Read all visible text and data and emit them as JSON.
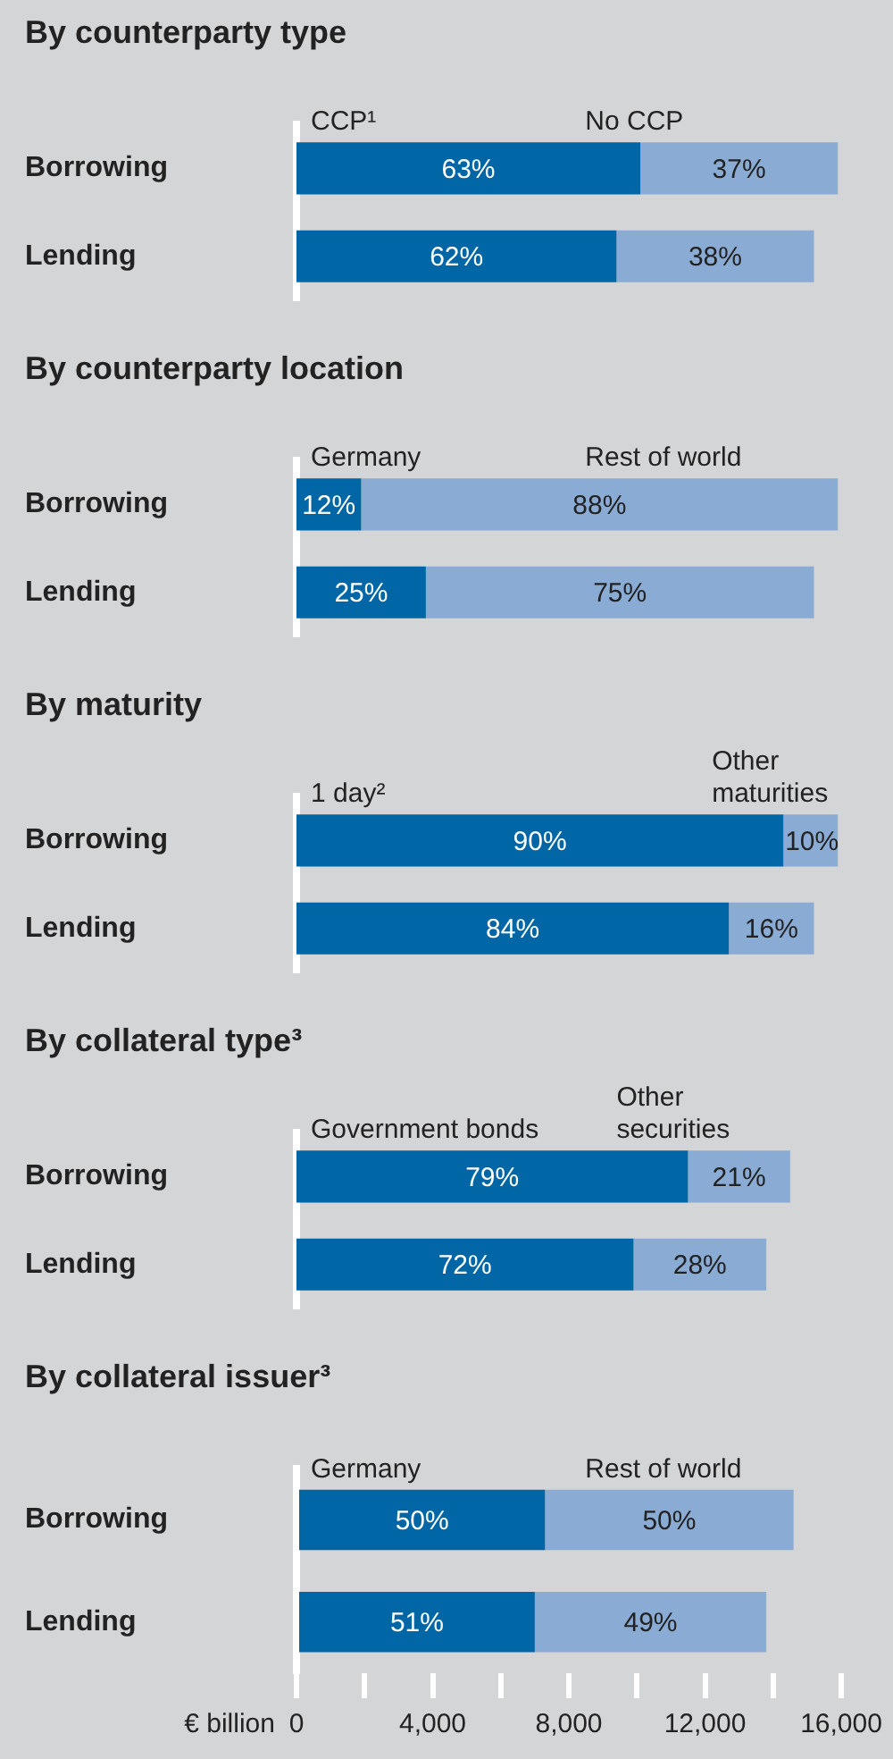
{
  "chart_data": [
    {
      "type": "bar",
      "orientation": "horizontal",
      "stacked": true,
      "title": "By counterparty type",
      "categories": [
        "Borrowing",
        "Lending"
      ],
      "tick_labels": "y",
      "xlim": [
        0,
        16000
      ],
      "series": [
        {
          "name": "CCP¹",
          "color": "#0066a6",
          "values": [
            10100,
            9400
          ]
        },
        {
          "name": "No CCP",
          "color": "#8aabd3",
          "values": [
            5800,
            5800
          ]
        }
      ],
      "annotations": [
        "63%",
        "37%",
        "62%",
        "38%"
      ]
    },
    {
      "type": "bar",
      "orientation": "horizontal",
      "stacked": true,
      "title": "By counterparty location",
      "categories": [
        "Borrowing",
        "Lending"
      ],
      "tick_labels": "y",
      "xlim": [
        0,
        16000
      ],
      "series": [
        {
          "name": "Germany",
          "color": "#0066a6",
          "values": [
            1900,
            3800
          ]
        },
        {
          "name": "Rest of world",
          "color": "#8aabd3",
          "values": [
            14000,
            11400
          ]
        }
      ],
      "annotations": [
        "12%",
        "88%",
        "25%",
        "75%"
      ]
    },
    {
      "type": "bar",
      "orientation": "horizontal",
      "stacked": true,
      "title": "By maturity",
      "categories": [
        "Borrowing",
        "Lending"
      ],
      "tick_labels": "y",
      "xlim": [
        0,
        16000
      ],
      "series": [
        {
          "name": "1 day²",
          "color": "#0066a6",
          "values": [
            14300,
            12700
          ]
        },
        {
          "name": "Other maturities",
          "color": "#8aabd3",
          "values": [
            1600,
            2500
          ]
        }
      ],
      "annotations": [
        "90%",
        "10%",
        "84%",
        "16%"
      ]
    },
    {
      "type": "bar",
      "orientation": "horizontal",
      "stacked": true,
      "title": "By collateral type³",
      "categories": [
        "Borrowing",
        "Lending"
      ],
      "tick_labels": "y",
      "xlim": [
        0,
        16000
      ],
      "series": [
        {
          "name": "Government bonds",
          "color": "#0066a6",
          "values": [
            11500,
            9900
          ]
        },
        {
          "name": "Other securities",
          "color": "#8aabd3",
          "values": [
            3000,
            3900
          ]
        }
      ],
      "annotations": [
        "79%",
        "21%",
        "72%",
        "28%"
      ]
    },
    {
      "type": "bar",
      "orientation": "horizontal",
      "stacked": true,
      "title": "By collateral issuer³",
      "categories": [
        "Borrowing",
        "Lending"
      ],
      "xlabel": "€ billion",
      "xlim": [
        0,
        16000
      ],
      "xticks": [
        0,
        {
          "value": 2000,
          "label": null
        },
        {
          "value": 4000,
          "label": "4,000"
        },
        {
          "value": 6000,
          "label": null
        },
        {
          "value": 8000,
          "label": "8,000"
        },
        {
          "value": 10000,
          "label": null
        },
        {
          "value": 12000,
          "label": "12,000"
        },
        {
          "value": 14000,
          "label": null
        },
        {
          "value": 16000,
          "label": "16,000"
        }
      ],
      "series": [
        {
          "name": "Germany",
          "color": "#0066a6",
          "values": [
            7300,
            7000
          ]
        },
        {
          "name": "Rest of world",
          "color": "#8aabd3",
          "values": [
            7300,
            6800
          ]
        }
      ],
      "annotations": [
        "50%",
        "50%",
        "51%",
        "49%"
      ]
    }
  ]
}
